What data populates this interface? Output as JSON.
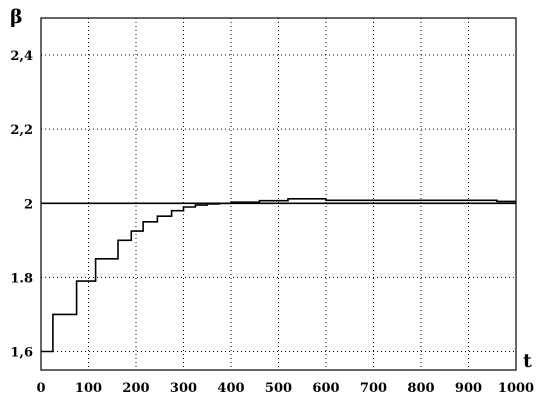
{
  "chart_data": {
    "type": "line",
    "title": "",
    "xlabel": "t",
    "ylabel": "β",
    "xlim": [
      0,
      1000
    ],
    "ylim": [
      1.55,
      2.5
    ],
    "grid": true,
    "x_ticks": [
      0,
      100,
      200,
      300,
      400,
      500,
      600,
      700,
      800,
      900,
      1000
    ],
    "x_tick_labels": [
      "0",
      "100",
      "200",
      "300",
      "400",
      "500",
      "600",
      "700",
      "800",
      "900",
      "1000"
    ],
    "y_ticks": [
      1.6,
      1.8,
      2.0,
      2.2,
      2.4
    ],
    "y_tick_labels": [
      "1,6",
      "1.8",
      "2",
      "2,2",
      "2,4"
    ],
    "series": [
      {
        "style": "step",
        "x": [
          0,
          25,
          25,
          50,
          50,
          75,
          75,
          115,
          115,
          140,
          140,
          162,
          162,
          190,
          190,
          215,
          215,
          245,
          245,
          275,
          275,
          300,
          300,
          325,
          325,
          350,
          350,
          375,
          375,
          400,
          400,
          460,
          460,
          520,
          520,
          600,
          600,
          960,
          960,
          1000
        ],
        "y": [
          1.6,
          1.6,
          1.7,
          1.7,
          1.7,
          1.7,
          1.79,
          1.79,
          1.85,
          1.85,
          1.85,
          1.85,
          1.9,
          1.9,
          1.925,
          1.925,
          1.95,
          1.95,
          1.965,
          1.965,
          1.98,
          1.98,
          1.99,
          1.99,
          1.995,
          1.995,
          1.998,
          1.998,
          2.0,
          2.0,
          2.003,
          2.003,
          2.007,
          2.007,
          2.012,
          2.012,
          2.008,
          2.008,
          2.005,
          2.005
        ]
      },
      {
        "style": "reference",
        "x": [
          0,
          1000
        ],
        "y": [
          2.0,
          2.0
        ]
      }
    ]
  }
}
